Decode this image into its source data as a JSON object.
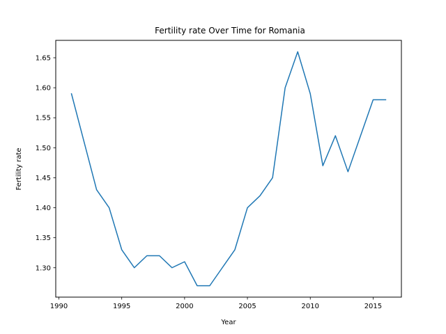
{
  "chart_data": {
    "type": "line",
    "title": "Fertility rate Over Time for Romania",
    "xlabel": "Year",
    "ylabel": "Fertility rate",
    "xlim": [
      1989.75,
      2017.25
    ],
    "ylim": [
      1.251,
      1.679
    ],
    "xticks": [
      1990,
      1995,
      2000,
      2005,
      2010,
      2015
    ],
    "xtick_labels": [
      "1990",
      "1995",
      "2000",
      "2005",
      "2010",
      "2015"
    ],
    "yticks": [
      1.3,
      1.35,
      1.4,
      1.45,
      1.5,
      1.55,
      1.6,
      1.65
    ],
    "ytick_labels": [
      "1.30",
      "1.35",
      "1.40",
      "1.45",
      "1.50",
      "1.55",
      "1.60",
      "1.65"
    ],
    "grid": false,
    "line_color": "#1f77b4",
    "x": [
      1991,
      1992,
      1993,
      1994,
      1995,
      1996,
      1997,
      1998,
      1999,
      2000,
      2001,
      2002,
      2003,
      2004,
      2005,
      2006,
      2007,
      2008,
      2009,
      2010,
      2011,
      2012,
      2013,
      2014,
      2015,
      2016
    ],
    "y": [
      1.59,
      1.51,
      1.43,
      1.4,
      1.33,
      1.3,
      1.32,
      1.32,
      1.3,
      1.31,
      1.27,
      1.27,
      1.3,
      1.33,
      1.4,
      1.42,
      1.45,
      1.6,
      1.66,
      1.59,
      1.47,
      1.52,
      1.46,
      1.52,
      1.58,
      1.58
    ]
  }
}
